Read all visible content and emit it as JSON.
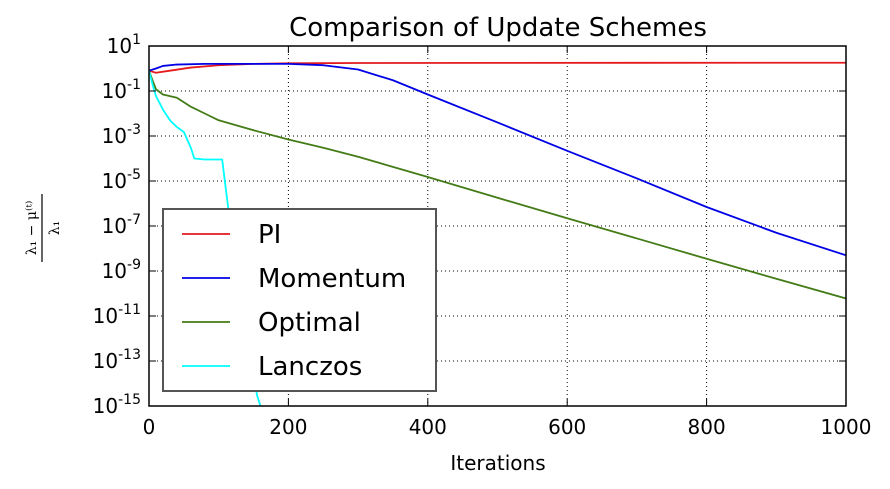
{
  "chart_data": {
    "type": "line",
    "title": "Comparison of Update Schemes",
    "xlabel": "Iterations",
    "ylabel": {
      "numerator": "λ₁ − μ⁽ᵗ⁾",
      "denominator": "λ₁"
    },
    "xlim": [
      0,
      1000
    ],
    "ylim": [
      1e-15,
      10
    ],
    "yscale": "log",
    "grid": true,
    "legend_position": "lower-left",
    "x_ticks": [
      "0",
      "200",
      "400",
      "600",
      "800",
      "1000"
    ],
    "y_ticks": [
      {
        "base": "10",
        "exp": "1"
      },
      {
        "base": "10",
        "exp": "-1"
      },
      {
        "base": "10",
        "exp": "-3"
      },
      {
        "base": "10",
        "exp": "-5"
      },
      {
        "base": "10",
        "exp": "-7"
      },
      {
        "base": "10",
        "exp": "-9"
      },
      {
        "base": "10",
        "exp": "-11"
      },
      {
        "base": "10",
        "exp": "-13"
      },
      {
        "base": "10",
        "exp": "-15"
      }
    ],
    "series": [
      {
        "name": "PI",
        "color": "#e41a1c",
        "x": [
          0,
          10,
          30,
          60,
          100,
          150,
          200,
          300,
          500,
          1000
        ],
        "y": [
          0.8,
          0.65,
          0.8,
          1.1,
          1.4,
          1.6,
          1.7,
          1.75,
          1.78,
          1.8
        ]
      },
      {
        "name": "Momentum",
        "color": "#0000e6",
        "x": [
          0,
          10,
          20,
          40,
          80,
          150,
          200,
          250,
          300,
          350,
          400,
          500,
          600,
          700,
          800,
          900,
          1000
        ],
        "y": [
          0.8,
          1.0,
          1.3,
          1.5,
          1.6,
          1.6,
          1.6,
          1.4,
          0.9,
          0.3,
          0.07,
          0.004,
          0.00022,
          1.3e-05,
          7e-07,
          5e-08,
          5e-09
        ]
      },
      {
        "name": "Optimal",
        "color": "#437c17",
        "x": [
          0,
          5,
          10,
          20,
          40,
          60,
          80,
          100,
          150,
          200,
          250,
          300,
          400,
          500,
          600,
          700,
          800,
          900,
          1000
        ],
        "y": [
          0.8,
          0.3,
          0.12,
          0.07,
          0.05,
          0.02,
          0.01,
          0.005,
          0.0018,
          0.0007,
          0.0003,
          0.00012,
          1.5e-05,
          1.8e-06,
          2.2e-07,
          2.8e-08,
          3.5e-09,
          4.5e-10,
          6e-11
        ]
      },
      {
        "name": "Lanczos",
        "color": "#00ffff",
        "x": [
          0,
          5,
          10,
          20,
          30,
          40,
          50,
          60,
          65,
          80,
          100,
          105,
          110,
          115,
          120,
          125,
          130,
          135,
          140,
          145,
          150,
          155,
          160
        ],
        "y": [
          0.8,
          0.2,
          0.06,
          0.015,
          0.005,
          0.0025,
          0.0015,
          0.0003,
          0.0001,
          9e-05,
          9e-05,
          9e-05,
          5e-06,
          3e-07,
          3e-08,
          3e-09,
          3e-10,
          3e-11,
          3e-12,
          3e-13,
          3e-14,
          3e-15,
          1e-15
        ]
      }
    ]
  }
}
